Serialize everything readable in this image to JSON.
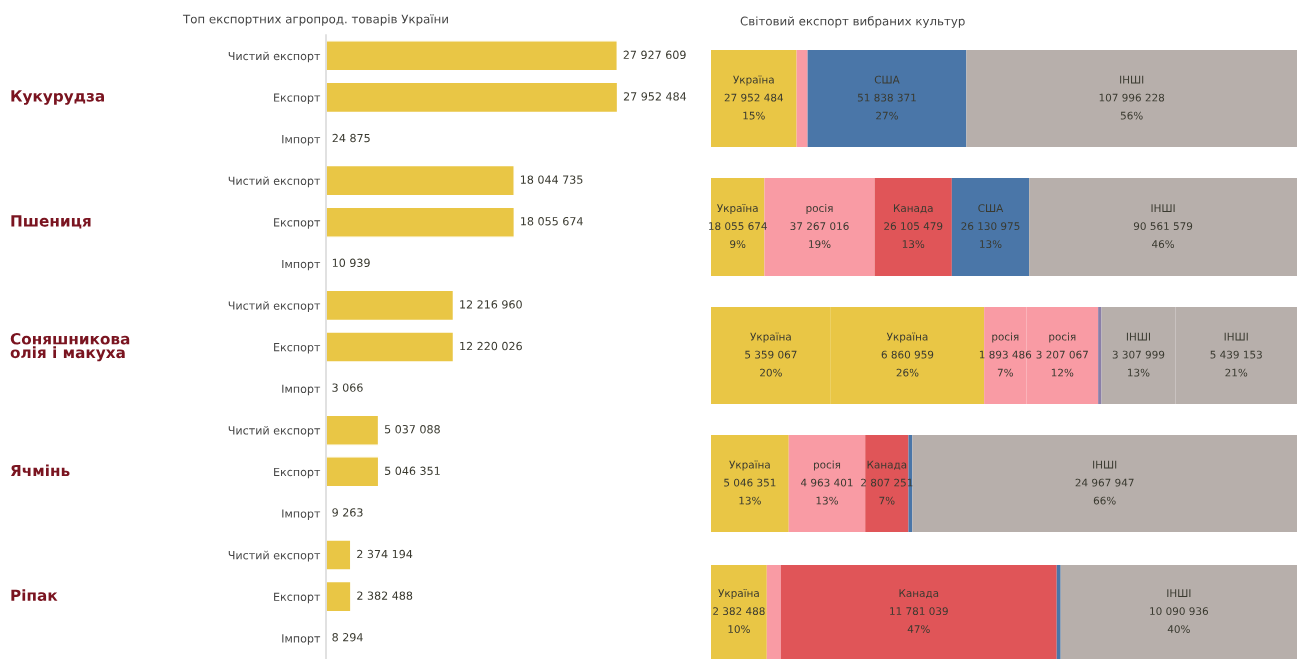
{
  "chart_data": [
    {
      "type": "bar",
      "orientation": "horizontal",
      "title": "Топ експортних агропрод. товарів України",
      "color": "#e9c645",
      "data_labels": true,
      "grid": false,
      "legend": false,
      "categories": [
        "Чистий експорт",
        "Експорт",
        "Імпорт",
        "Чистий експорт",
        "Експорт",
        "Імпорт",
        "Чистий експорт",
        "Експорт",
        "Імпорт",
        "Чистий експорт",
        "Експорт",
        "Імпорт",
        "Чистий експорт",
        "Експорт",
        "Імпорт"
      ],
      "values": [
        27927609,
        27952484,
        24875,
        18044735,
        18055674,
        10939,
        12216960,
        12220026,
        3066,
        5037088,
        5046351,
        9263,
        2374194,
        2382488,
        8294
      ],
      "annotations": [
        "Кукурудза",
        "Пшениця",
        "Соняшникова\nолія і макуха",
        "Ячмінь",
        "Ріпак"
      ]
    },
    {
      "type": "bar",
      "orientation": "horizontal",
      "stacked": true,
      "title": "Світовий експорт вибраних культур",
      "categories": [
        null
      ],
      "series": [
        {
          "name": "Україна",
          "color": "#e9c645",
          "values": [
            27952484
          ],
          "value_labels": [
            "27 952 484\n15%"
          ]
        },
        {
          "color": "#f99ba4",
          "values": [
            3600000
          ],
          "value_labels": [
            null
          ]
        },
        {
          "name": "США",
          "color": "#4a76a8",
          "values": [
            51838371
          ],
          "value_labels": [
            "51 838 371\n27%"
          ]
        },
        {
          "name": "ІНШІ",
          "color": "#b7afab",
          "values": [
            107996228
          ],
          "value_labels": [
            "107 996 228\n56%"
          ]
        }
      ]
    },
    {
      "type": "bar",
      "orientation": "horizontal",
      "stacked": true,
      "categories": [
        null
      ],
      "series": [
        {
          "name": "Україна",
          "color": "#e9c645",
          "values": [
            18055674
          ],
          "value_labels": [
            "18 055 674\n9%"
          ]
        },
        {
          "name": "росія",
          "color": "#f99ba4",
          "values": [
            37267016
          ],
          "value_labels": [
            "37 267 016\n19%"
          ]
        },
        {
          "name": "Канада",
          "color": "#e05558",
          "values": [
            26105479
          ],
          "value_labels": [
            "26 105 479\n13%"
          ]
        },
        {
          "name": "США",
          "color": "#4a76a8",
          "values": [
            26130975
          ],
          "value_labels": [
            "26 130 975\n13%"
          ]
        },
        {
          "name": "ІНШІ",
          "color": "#b7afab",
          "values": [
            90561579
          ],
          "value_labels": [
            "90 561 579\n46%"
          ]
        }
      ]
    },
    {
      "type": "bar",
      "orientation": "horizontal",
      "stacked": true,
      "categories": [
        null
      ],
      "series": [
        {
          "name": "Україна",
          "color": "#e9c645",
          "values": [
            5359067
          ],
          "value_labels": [
            "5 359 067\n20%"
          ]
        },
        {
          "name": "Україна",
          "color": "#e9c645",
          "values": [
            6860959
          ],
          "value_labels": [
            "6 860 959\n26%"
          ]
        },
        {
          "name": "росія",
          "color": "#f99ba4",
          "values": [
            1893486
          ],
          "value_labels": [
            "1 893 486\n7%"
          ]
        },
        {
          "name": "росія",
          "color": "#f99ba4",
          "values": [
            3207067
          ],
          "value_labels": [
            "3 207 067\n12%"
          ]
        },
        {
          "color": "#8a7fa8",
          "values": [
            150000
          ],
          "value_labels": [
            null
          ]
        },
        {
          "name": "ІНШІ",
          "color": "#b7afab",
          "values": [
            3307999
          ],
          "value_labels": [
            "3 307 999\n13%"
          ]
        },
        {
          "name": "ІНШІ",
          "color": "#b7afab",
          "values": [
            5439153
          ],
          "value_labels": [
            "5 439 153\n21%"
          ]
        }
      ]
    },
    {
      "type": "bar",
      "orientation": "horizontal",
      "stacked": true,
      "categories": [
        null
      ],
      "series": [
        {
          "name": "Україна",
          "color": "#e9c645",
          "values": [
            5046351
          ],
          "value_labels": [
            "5 046 351\n13%"
          ]
        },
        {
          "name": "росія",
          "color": "#f99ba4",
          "values": [
            4963401
          ],
          "value_labels": [
            "4 963 401\n13%"
          ]
        },
        {
          "name": "Канада",
          "color": "#e05558",
          "values": [
            2807251
          ],
          "value_labels": [
            "2 807 251\n7%"
          ]
        },
        {
          "color": "#4a76a8",
          "values": [
            250000
          ],
          "value_labels": [
            null
          ]
        },
        {
          "name": "ІНШІ",
          "color": "#b7afab",
          "values": [
            24967947
          ],
          "value_labels": [
            "24 967 947\n66%"
          ]
        }
      ]
    },
    {
      "type": "bar",
      "orientation": "horizontal",
      "stacked": true,
      "categories": [
        null
      ],
      "series": [
        {
          "name": "Україна",
          "color": "#e9c645",
          "values": [
            2382488
          ],
          "value_labels": [
            "2 382 488\n10%"
          ]
        },
        {
          "color": "#f99ba4",
          "values": [
            600000
          ],
          "value_labels": [
            null
          ]
        },
        {
          "name": "Канада",
          "color": "#e05558",
          "values": [
            11781039
          ],
          "value_labels": [
            "11 781 039\n47%"
          ]
        },
        {
          "color": "#4a76a8",
          "values": [
            170000
          ],
          "value_labels": [
            null
          ]
        },
        {
          "name": "ІНШІ",
          "color": "#b7afab",
          "values": [
            10090936
          ],
          "value_labels": [
            "10 090 936\n40%"
          ]
        }
      ]
    }
  ]
}
